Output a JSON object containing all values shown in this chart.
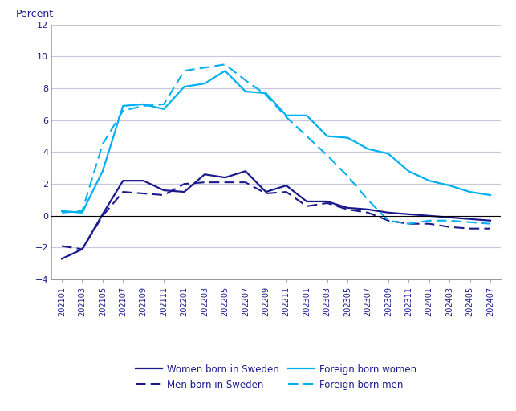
{
  "x_labels": [
    "202101",
    "202103",
    "202105",
    "202107",
    "202109",
    "202111",
    "202201",
    "202203",
    "202205",
    "202207",
    "202209",
    "202211",
    "202301",
    "202303",
    "202305",
    "202307",
    "202309",
    "202311",
    "202401",
    "202403",
    "202405",
    "202407"
  ],
  "women_sweden": [
    -2.7,
    -2.1,
    0.1,
    2.2,
    2.2,
    1.6,
    1.5,
    2.6,
    2.4,
    2.8,
    1.5,
    1.9,
    0.9,
    0.9,
    0.5,
    0.4,
    0.2,
    0.1,
    0.0,
    -0.1,
    -0.2,
    -0.3
  ],
  "men_sweden": [
    -1.9,
    -2.1,
    0.0,
    1.5,
    1.4,
    1.3,
    2.0,
    2.1,
    2.1,
    2.1,
    1.4,
    1.5,
    0.6,
    0.8,
    0.4,
    0.2,
    -0.3,
    -0.5,
    -0.5,
    -0.7,
    -0.8,
    -0.8
  ],
  "foreign_women": [
    0.3,
    0.2,
    2.8,
    6.9,
    7.0,
    6.7,
    8.1,
    8.3,
    9.1,
    7.8,
    7.7,
    6.3,
    6.3,
    5.0,
    4.9,
    4.2,
    3.9,
    2.8,
    2.2,
    1.9,
    1.5,
    1.3
  ],
  "foreign_men": [
    0.2,
    0.3,
    4.5,
    6.6,
    6.9,
    7.0,
    9.1,
    9.3,
    9.5,
    8.5,
    7.6,
    6.2,
    5.0,
    3.8,
    2.5,
    1.0,
    -0.3,
    -0.5,
    -0.3,
    -0.3,
    -0.4,
    -0.5
  ],
  "ylim": [
    -4,
    12
  ],
  "yticks": [
    -4,
    -2,
    0,
    2,
    4,
    6,
    8,
    10,
    12
  ],
  "ylabel": "Percent",
  "color_dark_blue": "#1a1a8c",
  "color_cyan": "#00b0f0",
  "background_color": "#ffffff",
  "grid_color": "#c8c8dc",
  "legend": {
    "women_sweden": "Women born in Sweden",
    "men_sweden": "Men born in Sweden",
    "foreign_women": "Foreign born women",
    "foreign_men": "Foreign born men"
  }
}
